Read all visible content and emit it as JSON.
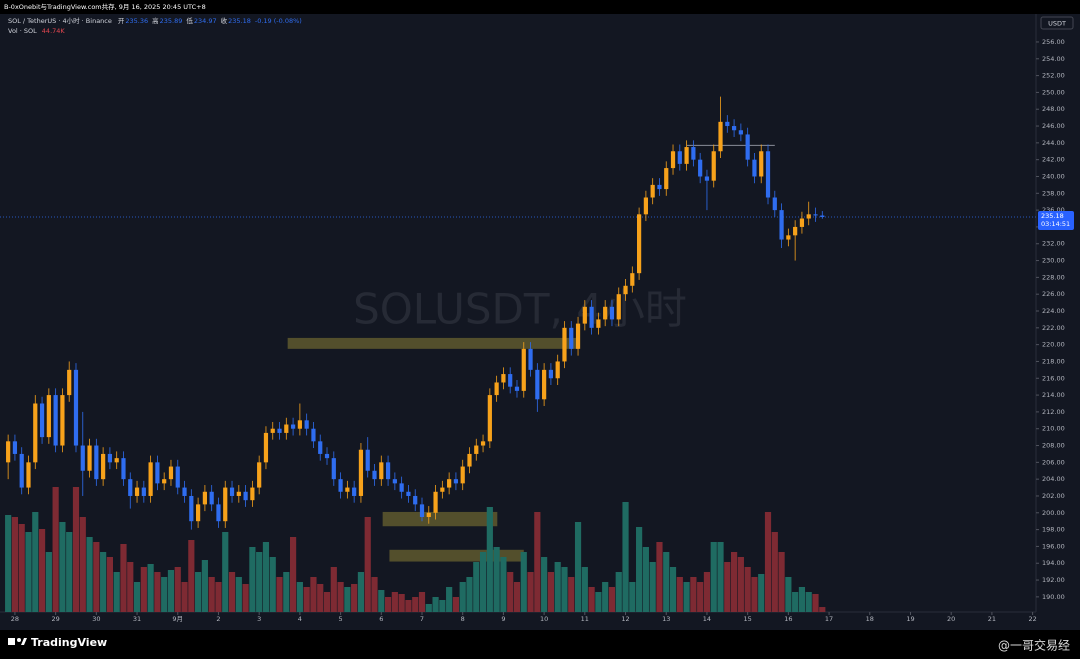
{
  "header": {
    "caption": "B-0xOnebit与TradingView.com共存, 9月 16, 2025 20:45 UTC+8"
  },
  "chart_data": {
    "type": "candlestick",
    "title": "SOL / TetherUS · 4小时 · Binance",
    "watermark": "SOLUSDT, 4小时",
    "ohlc_labels": [
      "开",
      "高",
      "低",
      "收"
    ],
    "change": "-0.19 (-0.08%)",
    "volume_title": "Vol · SOL",
    "volume_value_label": "44.74K",
    "currency": "USDT",
    "countdown": "03:14:51",
    "up_color": "#f7a21b",
    "down_color": "#2f6df0",
    "volume_up_color": "#1f6b62",
    "volume_down_color": "#7e2a33",
    "open": [
      206,
      208.5,
      207,
      203,
      206,
      213,
      209,
      214,
      208,
      214,
      217,
      208,
      205,
      208,
      204,
      207,
      206,
      206.5,
      204,
      202,
      203,
      202,
      206,
      203.5,
      204,
      205.5,
      203,
      202,
      199,
      201,
      202.5,
      201,
      199,
      203,
      202,
      202.5,
      201.5,
      203,
      206,
      209.5,
      210,
      209.5,
      210.5,
      210,
      211,
      210,
      208.5,
      207,
      206.5,
      204,
      202.5,
      203,
      202,
      207.5,
      205,
      204,
      206,
      204,
      203.5,
      202.5,
      202,
      201,
      199.5,
      200,
      202.5,
      203,
      204,
      203.5,
      205.5,
      207,
      208,
      208.5,
      214,
      215.5,
      216.5,
      215,
      214.5,
      219.5,
      217,
      213.5,
      217,
      216,
      218,
      222,
      219.5,
      222.5,
      224.5,
      222,
      223,
      224.5,
      223,
      226,
      227,
      228.5,
      235.5,
      237.5,
      239,
      238.5,
      241,
      243,
      241.5,
      243.5,
      242,
      240,
      239.5,
      243,
      246.5,
      246,
      245.5,
      245,
      242,
      240,
      243,
      237.5,
      236,
      232.5,
      233,
      234,
      235,
      235.5,
      235.36
    ],
    "high": [
      209.3,
      209.3,
      207.8,
      206.8,
      214,
      213.8,
      214.8,
      214.8,
      214.8,
      218,
      217.8,
      212,
      208.8,
      208.8,
      207.8,
      207.8,
      207.3,
      207.3,
      204.8,
      203.8,
      203.8,
      206.8,
      206.8,
      204.8,
      206.3,
      206.3,
      203.8,
      202.8,
      201.8,
      203.3,
      203.3,
      201.8,
      203.8,
      203.8,
      203.3,
      203.3,
      203.8,
      206.8,
      210.3,
      210.8,
      210.8,
      211.3,
      211.3,
      213,
      211.8,
      210.8,
      209.3,
      207.8,
      207.3,
      204.8,
      203.8,
      203.8,
      208.3,
      209,
      205.8,
      206.8,
      206.8,
      204.8,
      204.3,
      203.3,
      202.8,
      201.8,
      200.8,
      203.3,
      203.8,
      204.8,
      204.8,
      206.3,
      207.8,
      208.8,
      209.3,
      214.8,
      216.3,
      217.3,
      217.3,
      215.8,
      220.3,
      220.3,
      217.8,
      217.8,
      217.8,
      218.8,
      222.8,
      222.8,
      223.3,
      225.3,
      225.3,
      223.8,
      225.3,
      225.3,
      226.8,
      227.8,
      229.3,
      236.3,
      238.3,
      239.8,
      239.8,
      241.8,
      243.8,
      243.8,
      244.3,
      244.3,
      242.8,
      240.8,
      243.8,
      249.5,
      247.3,
      246.8,
      246.3,
      245.8,
      242.8,
      243.8,
      243.8,
      238.3,
      236.8,
      233.8,
      234.8,
      235.8,
      237,
      236.3,
      235.89
    ],
    "low": [
      204,
      206.2,
      202.2,
      202.2,
      205.2,
      208.2,
      208.2,
      207.2,
      207.2,
      213.2,
      207.2,
      202,
      204.2,
      203.2,
      203.2,
      205.2,
      205.2,
      203.2,
      200.5,
      201.2,
      201.2,
      201.2,
      202.7,
      202.7,
      203.2,
      202.2,
      201.2,
      198,
      198.2,
      200.2,
      200.2,
      198.2,
      198.2,
      201.2,
      201.2,
      200.7,
      200.7,
      202.2,
      205.2,
      208.7,
      208.7,
      208.7,
      209.2,
      209.2,
      209.2,
      207.7,
      206.2,
      205.7,
      203.2,
      201.7,
      201.7,
      201.2,
      201.2,
      204.2,
      203.2,
      203.2,
      203.2,
      202.7,
      201.7,
      201.2,
      200.2,
      199,
      198.7,
      199.2,
      201.7,
      202.2,
      202.7,
      202.7,
      204.7,
      206.2,
      207.2,
      207.7,
      213.2,
      214.7,
      214.2,
      213.7,
      213.7,
      216.2,
      212,
      212.7,
      215.2,
      215.2,
      217.2,
      218.7,
      218.7,
      221.7,
      221.2,
      221.2,
      222.2,
      222.2,
      222.2,
      225.2,
      226.2,
      227.7,
      234.7,
      236.7,
      237.7,
      237.7,
      240.2,
      240.7,
      240.7,
      241.2,
      239.2,
      236,
      238.7,
      242.2,
      245.2,
      244.7,
      244.2,
      241.2,
      239.2,
      239.2,
      236.7,
      235.2,
      231.5,
      231.7,
      230,
      233.2,
      234.2,
      234.6,
      234.97
    ],
    "close": [
      208.5,
      207,
      203,
      206,
      213,
      209,
      214,
      208,
      214,
      217,
      208,
      205,
      208,
      204,
      207,
      206,
      206.5,
      204,
      202,
      203,
      202,
      206,
      203.5,
      204,
      205.5,
      203,
      202,
      199,
      201,
      202.5,
      201,
      199,
      203,
      202,
      202.5,
      201.5,
      203,
      206,
      209.5,
      210,
      209.5,
      210.5,
      210,
      211,
      210,
      208.5,
      207,
      206.5,
      204,
      202.5,
      203,
      202,
      207.5,
      205,
      204,
      206,
      204,
      203.5,
      202.5,
      202,
      201,
      199.5,
      200,
      202.5,
      203,
      204,
      203.5,
      205.5,
      207,
      208,
      208.5,
      214,
      215.5,
      216.5,
      215,
      214.5,
      219.5,
      217,
      213.5,
      217,
      216,
      218,
      222,
      219.5,
      222.5,
      224.5,
      222,
      223,
      224.5,
      223,
      226,
      227,
      228.5,
      235.5,
      237.5,
      239,
      238.5,
      241,
      243,
      241.5,
      243.5,
      242,
      240,
      239.5,
      243,
      246.5,
      246,
      245.5,
      245,
      242,
      240,
      243,
      237.5,
      236,
      232.5,
      233,
      234,
      235,
      235.5,
      235.36,
      235.18
    ],
    "volume": [
      873000,
      855000,
      792000,
      720000,
      900000,
      747000,
      540000,
      1125000,
      810000,
      720000,
      1125000,
      855000,
      675000,
      630000,
      540000,
      495000,
      360000,
      612000,
      450000,
      270000,
      405000,
      432000,
      360000,
      315000,
      378000,
      405000,
      270000,
      648000,
      360000,
      468000,
      315000,
      270000,
      720000,
      360000,
      315000,
      252000,
      585000,
      540000,
      630000,
      495000,
      315000,
      360000,
      675000,
      270000,
      225000,
      315000,
      252000,
      180000,
      405000,
      270000,
      225000,
      252000,
      360000,
      855000,
      315000,
      198000,
      135000,
      180000,
      162000,
      108000,
      135000,
      180000,
      72000,
      135000,
      108000,
      225000,
      135000,
      270000,
      315000,
      450000,
      540000,
      945000,
      585000,
      495000,
      360000,
      270000,
      540000,
      360000,
      900000,
      495000,
      360000,
      450000,
      405000,
      315000,
      810000,
      405000,
      225000,
      180000,
      270000,
      225000,
      360000,
      990000,
      270000,
      765000,
      585000,
      450000,
      630000,
      540000,
      405000,
      315000,
      270000,
      315000,
      270000,
      360000,
      630000,
      630000,
      450000,
      540000,
      495000,
      405000,
      315000,
      342000,
      900000,
      720000,
      540000,
      315000,
      180000,
      225000,
      180000,
      162000,
      44740
    ],
    "xlim": [
      -1.2,
      151.5
    ],
    "xticks": [
      {
        "value": 1,
        "label": "28"
      },
      {
        "value": 7,
        "label": "29"
      },
      {
        "value": 13,
        "label": "30"
      },
      {
        "value": 19,
        "label": "31"
      },
      {
        "value": 25,
        "label": "9月"
      },
      {
        "value": 31,
        "label": "2"
      },
      {
        "value": 37,
        "label": "3"
      },
      {
        "value": 43,
        "label": "4"
      },
      {
        "value": 49,
        "label": "5"
      },
      {
        "value": 55,
        "label": "6"
      },
      {
        "value": 61,
        "label": "7"
      },
      {
        "value": 67,
        "label": "8"
      },
      {
        "value": 73,
        "label": "9"
      },
      {
        "value": 79,
        "label": "10"
      },
      {
        "value": 85,
        "label": "11"
      },
      {
        "value": 91,
        "label": "12"
      },
      {
        "value": 97,
        "label": "13"
      },
      {
        "value": 103,
        "label": "14"
      },
      {
        "value": 109,
        "label": "15"
      },
      {
        "value": 115,
        "label": "16"
      },
      {
        "value": 121,
        "label": "17"
      },
      {
        "value": 127,
        "label": "18"
      },
      {
        "value": 133,
        "label": "19"
      },
      {
        "value": 139,
        "label": "20"
      },
      {
        "value": 145,
        "label": "21"
      },
      {
        "value": 151,
        "label": "22"
      }
    ],
    "ylim": [
      188.2,
      258.85
    ],
    "yticks": [
      {
        "value": 190,
        "label": "190.00"
      },
      {
        "value": 192,
        "label": "192.00"
      },
      {
        "value": 194,
        "label": "194.00"
      },
      {
        "value": 196,
        "label": "196.00"
      },
      {
        "value": 198,
        "label": "198.00"
      },
      {
        "value": 200,
        "label": "200.00"
      },
      {
        "value": 202,
        "label": "202.00"
      },
      {
        "value": 204,
        "label": "204.00"
      },
      {
        "value": 206,
        "label": "206.00"
      },
      {
        "value": 208,
        "label": "208.00"
      },
      {
        "value": 210,
        "label": "210.00"
      },
      {
        "value": 212,
        "label": "212.00"
      },
      {
        "value": 214,
        "label": "214.00"
      },
      {
        "value": 216,
        "label": "216.00"
      },
      {
        "value": 218,
        "label": "218.00"
      },
      {
        "value": 220,
        "label": "220.00"
      },
      {
        "value": 222,
        "label": "222.00"
      },
      {
        "value": 224,
        "label": "224.00"
      },
      {
        "value": 226,
        "label": "226.00"
      },
      {
        "value": 228,
        "label": "228.00"
      },
      {
        "value": 230,
        "label": "230.00"
      },
      {
        "value": 232,
        "label": "232.00"
      },
      {
        "value": 234,
        "label": "234.00"
      },
      {
        "value": 236,
        "label": "236.00"
      },
      {
        "value": 238,
        "label": "238.00"
      },
      {
        "value": 240,
        "label": "240.00"
      },
      {
        "value": 242,
        "label": "242.00"
      },
      {
        "value": 244,
        "label": "244.00"
      },
      {
        "value": 246,
        "label": "246.00"
      },
      {
        "value": 248,
        "label": "248.00"
      },
      {
        "value": 250,
        "label": "250.00"
      },
      {
        "value": 252,
        "label": "252.00"
      },
      {
        "value": 254,
        "label": "254.00"
      },
      {
        "value": 256,
        "label": "256.00"
      }
    ],
    "grid": false,
    "zones": [
      {
        "from": 41.2,
        "to": 84.1,
        "low": 219.5,
        "high": 220.8
      },
      {
        "from": 55.2,
        "to": 72.1,
        "low": 198.4,
        "high": 200.1
      },
      {
        "from": 56.2,
        "to": 76,
        "low": 194.2,
        "high": 195.6
      }
    ],
    "zone_color": "rgba(190,170,60,0.38)",
    "hline": {
      "from": 100,
      "to": 113,
      "value": 243.7
    }
  },
  "footer": {
    "brand": "TradingView",
    "credit": "@一哥交易经"
  }
}
